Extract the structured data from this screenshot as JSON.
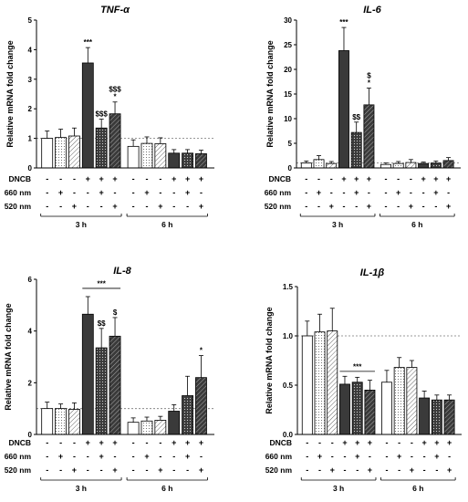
{
  "figure": {
    "conditions": [
      {
        "label": "DNCB",
        "signs": [
          "-",
          "-",
          "-",
          "+",
          "+",
          "+",
          "-",
          "-",
          "-",
          "+",
          "+",
          "+"
        ]
      },
      {
        "label": "660 nm",
        "signs": [
          "-",
          "+",
          "-",
          "-",
          "+",
          "-",
          "-",
          "+",
          "-",
          "-",
          "+",
          "-"
        ]
      },
      {
        "label": "520 nm",
        "signs": [
          "-",
          "-",
          "+",
          "-",
          "-",
          "+",
          "-",
          "-",
          "+",
          "-",
          "-",
          "+"
        ]
      }
    ],
    "groups": [
      "3 h",
      "6 h"
    ],
    "colors": {
      "white": "#ffffff",
      "dark": "#3a3a3a",
      "light_dark": "#595959",
      "stroke": "#000000",
      "ref_line": "#777777"
    }
  },
  "chart_data": [
    {
      "type": "bar",
      "title": "TNF-α",
      "ylabel": "Relative mRNA fold change",
      "ylim": [
        0,
        5
      ],
      "yticks": [
        0,
        1,
        2,
        3,
        4,
        5
      ],
      "reference_line": 1,
      "values": [
        1.0,
        1.03,
        1.08,
        3.55,
        1.35,
        1.83,
        0.73,
        0.83,
        0.82,
        0.5,
        0.5,
        0.48
      ],
      "errors": [
        0.25,
        0.28,
        0.27,
        0.52,
        0.3,
        0.4,
        0.22,
        0.22,
        0.2,
        0.12,
        0.12,
        0.12
      ],
      "annotations": [
        {
          "bar": 3,
          "lines": [
            "***"
          ]
        },
        {
          "bar": 4,
          "lines": [
            "$$$"
          ]
        },
        {
          "bar": 5,
          "lines": [
            "$$$",
            "*"
          ]
        }
      ]
    },
    {
      "type": "bar",
      "title": "IL-6",
      "ylabel": "Relative mRNA fold change",
      "ylim": [
        0,
        30
      ],
      "yticks": [
        0,
        5,
        10,
        15,
        20,
        25,
        30
      ],
      "reference_line": 1,
      "values": [
        1.0,
        1.7,
        0.9,
        23.8,
        7.2,
        12.8,
        0.7,
        0.9,
        1.1,
        0.9,
        1.0,
        1.5
      ],
      "errors": [
        0.4,
        0.8,
        0.4,
        4.7,
        2.1,
        3.4,
        0.3,
        0.4,
        0.6,
        0.3,
        0.4,
        0.6
      ],
      "annotations": [
        {
          "bar": 3,
          "lines": [
            "***"
          ]
        },
        {
          "bar": 4,
          "lines": [
            "$$"
          ]
        },
        {
          "bar": 5,
          "lines": [
            "$",
            "*"
          ]
        }
      ]
    },
    {
      "type": "bar",
      "title": "IL-8",
      "ylabel": "Relative mRNA fold change",
      "ylim": [
        0,
        6
      ],
      "yticks": [
        0,
        2,
        4,
        6
      ],
      "reference_line": 1,
      "values": [
        1.0,
        1.0,
        0.97,
        4.65,
        3.35,
        3.8,
        0.47,
        0.52,
        0.55,
        0.9,
        1.5,
        2.2
      ],
      "errors": [
        0.25,
        0.18,
        0.25,
        0.68,
        0.75,
        0.72,
        0.17,
        0.15,
        0.15,
        0.25,
        0.75,
        0.85
      ],
      "annotations": [
        {
          "bar": 4,
          "lines": [
            "$$"
          ]
        },
        {
          "bar": 5,
          "lines": [
            "$"
          ]
        },
        {
          "bar": 11,
          "lines": [
            "*"
          ]
        }
      ],
      "bracket": {
        "from": 3,
        "to": 5,
        "y": 5.65,
        "label": "***"
      }
    },
    {
      "type": "bar",
      "title": "IL-1β",
      "ylabel": "Relative mRNA fold change",
      "ylim": [
        0,
        1.5
      ],
      "yticks": [
        0.0,
        0.5,
        1.0,
        1.5
      ],
      "reference_line": 1,
      "values": [
        1.0,
        1.04,
        1.05,
        0.51,
        0.53,
        0.45,
        0.53,
        0.68,
        0.68,
        0.37,
        0.35,
        0.35
      ],
      "errors": [
        0.15,
        0.18,
        0.23,
        0.08,
        0.05,
        0.1,
        0.12,
        0.1,
        0.07,
        0.07,
        0.05,
        0.05
      ],
      "annotations": [],
      "bracket": {
        "from": 3,
        "to": 5,
        "y": 0.64,
        "label": "***"
      }
    }
  ]
}
